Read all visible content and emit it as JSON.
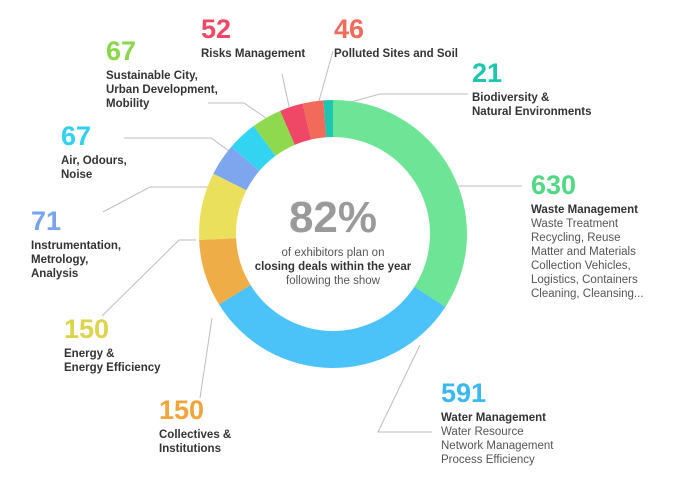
{
  "chart_data": {
    "type": "pie",
    "donut": true,
    "center": {
      "percent": "82%",
      "line1": "of exhibitors plan on",
      "line2": "closing deals within the year",
      "line3": "following the show"
    },
    "slices": [
      {
        "label": "Waste Management",
        "value": 630,
        "color": "#6ee596",
        "details": [
          "Waste Treatment",
          "Recycling, Reuse",
          "Matter and Materials",
          "Collection Vehicles,",
          "Logistics, Containers",
          "Cleaning, Cleansing..."
        ]
      },
      {
        "label": "Water Management",
        "value": 591,
        "color": "#4cc3f8",
        "details": [
          "Water Resource",
          "Network Management",
          "Process Efficiency"
        ]
      },
      {
        "label": "Collectives & Institutions",
        "value": 150,
        "color": "#efad48",
        "details": []
      },
      {
        "label": "Energy & Energy Efficiency",
        "value": 150,
        "color": "#ebe05c",
        "details": []
      },
      {
        "label": "Instrumentation, Metrology, Analysis",
        "value": 71,
        "color": "#7ea6ef",
        "details": []
      },
      {
        "label": "Air, Odours, Noise",
        "value": 67,
        "color": "#33d4f2",
        "details": []
      },
      {
        "label": "Sustainable City, Urban Development, Mobility",
        "value": 67,
        "color": "#8fd94e",
        "details": []
      },
      {
        "label": "Risks Management",
        "value": 52,
        "color": "#ee4866",
        "details": []
      },
      {
        "label": "Polluted Sites and Soil",
        "value": 46,
        "color": "#f26a5a",
        "details": []
      },
      {
        "label": "Biodiversity & Natural Environments",
        "value": 21,
        "color": "#1ec6b0",
        "details": []
      }
    ]
  },
  "labels": [
    {
      "num": "630",
      "name": "Waste Management",
      "sub": "Waste Treatment\nRecycling, Reuse\nMatter and Materials\nCollection Vehicles,\nLogistics, Containers\nCleaning, Cleansing...",
      "color": "#50d884"
    },
    {
      "num": "591",
      "name": "Water Management",
      "sub": "Water Resource\nNetwork Management\nProcess Efficiency",
      "color": "#3bb8f2"
    },
    {
      "num": "150",
      "name": "Collectives &\nInstitutions",
      "sub": "",
      "color": "#f0a43a"
    },
    {
      "num": "150",
      "name": "Energy &\nEnergy Efficiency",
      "sub": "",
      "color": "#dcd44a"
    },
    {
      "num": "71",
      "name": "Instrumentation,\nMetrology,\nAnalysis",
      "sub": "",
      "color": "#7aa3ee"
    },
    {
      "num": "67",
      "name": "Air, Odours,\nNoise",
      "sub": "",
      "color": "#2fd0f0"
    },
    {
      "num": "67",
      "name": "Sustainable City,\nUrban Development,\nMobility",
      "sub": "",
      "color": "#8dd64b"
    },
    {
      "num": "52",
      "name": "Risks Management",
      "sub": "",
      "color": "#ee4866"
    },
    {
      "num": "46",
      "name": "Polluted Sites and Soil",
      "sub": "",
      "color": "#f26a5a"
    },
    {
      "num": "21",
      "name": "Biodiversity &\nNatural Environments",
      "sub": "",
      "color": "#1ec6b0"
    }
  ]
}
